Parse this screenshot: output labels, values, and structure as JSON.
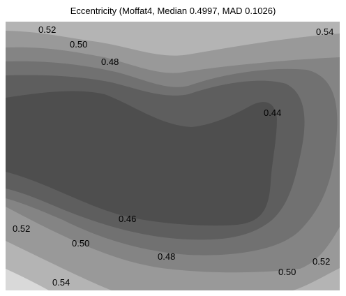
{
  "chart_data": {
    "type": "contour",
    "title": "Eccentricity (Moffat4, Median 0.4997, MAD 0.1026)",
    "xlabel": "",
    "ylabel": "",
    "colormap": "grayscale",
    "levels": [
      0.44,
      0.46,
      0.48,
      0.5,
      0.52,
      0.54
    ],
    "fill_colors": {
      "below_0.44": "#4e4e4e",
      "0.44-0.46": "#5e5e5e",
      "0.46-0.48": "#717171",
      "0.48-0.50": "#848484",
      "0.50-0.52": "#999999",
      "0.52-0.54": "#b4b4b4",
      "above_0.54": "#d9d9d9"
    },
    "contour_labels": [
      "0.52",
      "0.50",
      "0.48",
      "0.54",
      "0.44",
      "0.46",
      "0.52",
      "0.50",
      "0.48",
      "0.54",
      "0.50",
      "0.52"
    ]
  }
}
